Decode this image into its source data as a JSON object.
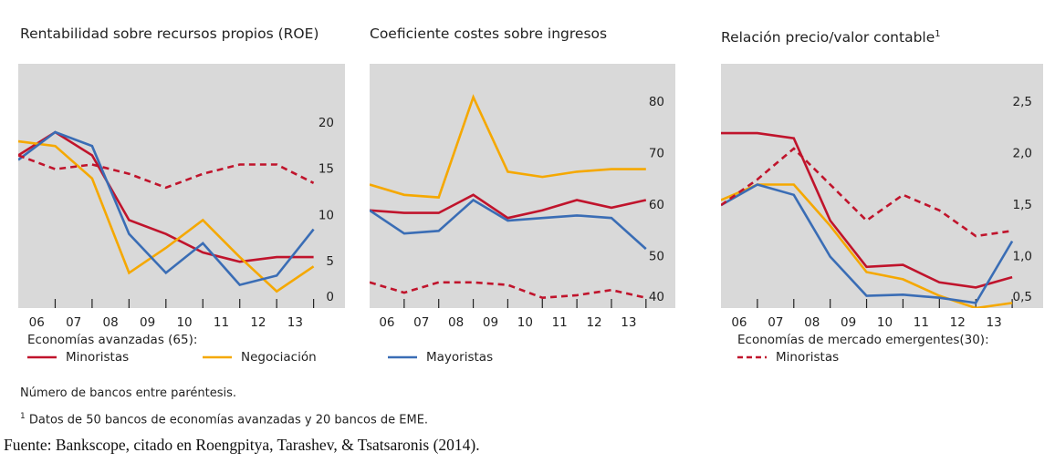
{
  "chart_data": [
    {
      "type": "line",
      "title": "Rentabilidad sobre recursos propios (ROE)",
      "x": [
        2006,
        2007,
        2008,
        2009,
        2010,
        2011,
        2012,
        2013,
        2014
      ],
      "xlim": [
        2006,
        2014.85
      ],
      "xticks": [
        {
          "value": 2006.5,
          "label": "06"
        },
        {
          "value": 2007.5,
          "label": "07"
        },
        {
          "value": 2008.5,
          "label": "08"
        },
        {
          "value": 2009.5,
          "label": "09"
        },
        {
          "value": 2010.5,
          "label": "10"
        },
        {
          "value": 2011.5,
          "label": "11"
        },
        {
          "value": 2012.5,
          "label": "12"
        },
        {
          "value": 2013.5,
          "label": "13"
        }
      ],
      "ylim": [
        0,
        25
      ],
      "yticks": [
        0,
        5,
        10,
        15,
        20
      ],
      "series": [
        {
          "color": "#c0142c",
          "dash": false,
          "values": [
            16.5,
            19,
            16.5,
            9.5,
            8,
            6,
            5,
            5.5,
            5.5
          ]
        },
        {
          "color": "#f5a800",
          "dash": false,
          "values": [
            18,
            17.5,
            14,
            3.8,
            6.5,
            9.5,
            5.5,
            1.8,
            4.5
          ]
        },
        {
          "color": "#3a6db5",
          "dash": false,
          "values": [
            16,
            19,
            17.5,
            8,
            3.8,
            7,
            2.5,
            3.5,
            8.5
          ]
        },
        {
          "color": "#c0142c",
          "dash": true,
          "values": [
            16.5,
            15,
            15.5,
            14.5,
            13,
            14.5,
            15.5,
            15.5,
            13.5
          ]
        }
      ]
    },
    {
      "type": "line",
      "title": "Coeficiente costes sobre ingresos",
      "x": [
        2006,
        2007,
        2008,
        2009,
        2010,
        2011,
        2012,
        2013,
        2014
      ],
      "xlim": [
        2006,
        2014.85
      ],
      "xticks": [
        {
          "value": 2006.5,
          "label": "06"
        },
        {
          "value": 2007.5,
          "label": "07"
        },
        {
          "value": 2008.5,
          "label": "08"
        },
        {
          "value": 2009.5,
          "label": "09"
        },
        {
          "value": 2010.5,
          "label": "10"
        },
        {
          "value": 2011.5,
          "label": "11"
        },
        {
          "value": 2012.5,
          "label": "12"
        },
        {
          "value": 2013.5,
          "label": "13"
        }
      ],
      "ylim": [
        40,
        85
      ],
      "yticks": [
        40,
        50,
        60,
        70,
        80
      ],
      "series": [
        {
          "color": "#c0142c",
          "dash": false,
          "values": [
            59,
            58.5,
            58.5,
            62,
            57.5,
            59,
            61,
            59.5,
            61
          ]
        },
        {
          "color": "#f5a800",
          "dash": false,
          "values": [
            64,
            62,
            61.5,
            81,
            66.5,
            65.5,
            66.5,
            67,
            67
          ]
        },
        {
          "color": "#3a6db5",
          "dash": false,
          "values": [
            59,
            54.5,
            55,
            61,
            57,
            57.5,
            58,
            57.5,
            51.5
          ]
        },
        {
          "color": "#c0142c",
          "dash": true,
          "values": [
            45,
            43,
            45,
            45,
            44.5,
            42,
            42.5,
            43.5,
            42
          ]
        }
      ]
    },
    {
      "type": "line",
      "title": "Relación precio/valor contable",
      "title_note": "1",
      "x": [
        2006,
        2007,
        2008,
        2009,
        2010,
        2011,
        2012,
        2013,
        2014
      ],
      "xlim": [
        2006,
        2014.85
      ],
      "xticks": [
        {
          "value": 2006.5,
          "label": "06"
        },
        {
          "value": 2007.5,
          "label": "07"
        },
        {
          "value": 2008.5,
          "label": "08"
        },
        {
          "value": 2009.5,
          "label": "09"
        },
        {
          "value": 2010.5,
          "label": "10"
        },
        {
          "value": 2011.5,
          "label": "11"
        },
        {
          "value": 2012.5,
          "label": "12"
        },
        {
          "value": 2013.5,
          "label": "13"
        }
      ],
      "ylim": [
        0.5,
        2.75
      ],
      "yticks": [
        {
          "value": 0.5,
          "label": "0,5"
        },
        {
          "value": 1,
          "label": "1,0"
        },
        {
          "value": 1.5,
          "label": "1,5"
        },
        {
          "value": 2,
          "label": "2,0"
        },
        {
          "value": 2.5,
          "label": "2,5"
        }
      ],
      "series": [
        {
          "color": "#c0142c",
          "dash": false,
          "values": [
            2.2,
            2.2,
            2.15,
            1.35,
            0.9,
            0.92,
            0.75,
            0.7,
            0.8
          ]
        },
        {
          "color": "#f5a800",
          "dash": false,
          "values": [
            1.55,
            1.7,
            1.7,
            1.3,
            0.85,
            0.78,
            0.62,
            0.5,
            0.55
          ]
        },
        {
          "color": "#3a6db5",
          "dash": false,
          "values": [
            1.5,
            1.7,
            1.6,
            1,
            0.62,
            0.63,
            0.6,
            0.55,
            1.15
          ]
        },
        {
          "color": "#c0142c",
          "dash": true,
          "values": [
            1.5,
            1.75,
            2.05,
            1.7,
            1.35,
            1.6,
            1.45,
            1.2,
            1.25
          ]
        }
      ]
    }
  ],
  "legend": [
    {
      "title": "Economías avanzadas (65):",
      "entries": [
        {
          "name": "Minoristas",
          "color": "#c0142c",
          "dash": false
        },
        {
          "name": "Negociación",
          "color": "#f5a800",
          "dash": false
        },
        {
          "name": "Mayoristas",
          "color": "#3a6db5",
          "dash": false
        }
      ]
    },
    {
      "title": "Economías de mercado emergentes(30):",
      "entries": [
        {
          "name": "Minoristas",
          "color": "#c0142c",
          "dash": true
        }
      ]
    }
  ],
  "notes": {
    "first": "Número de bancos entre paréntesis.",
    "second_mark": "1",
    "second": "Datos de 50 bancos de economías avanzadas y 20 bancos de EME."
  },
  "source": "Fuente: Bankscope, citado en Roengpitya, Tarashev, & Tsatsaronis (2014)."
}
